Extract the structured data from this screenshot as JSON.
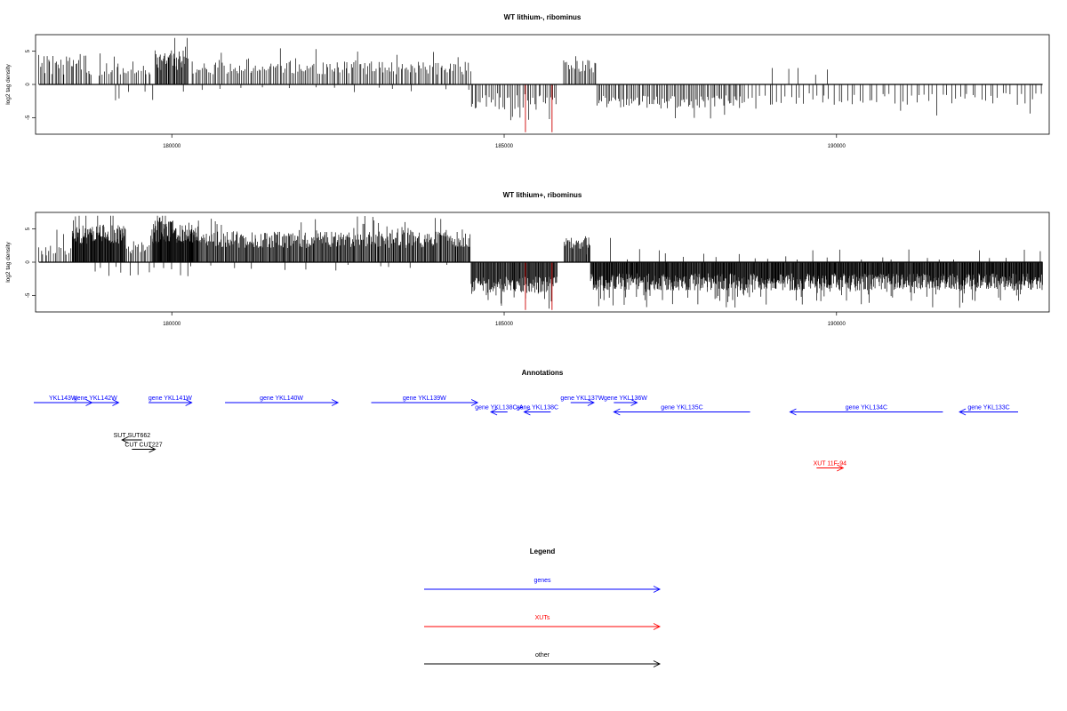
{
  "chart_data": [
    {
      "type": "bar",
      "title": "WT lithium-, ribominus",
      "ylabel": "log2 tag density",
      "xlabel": "",
      "xlim": [
        177950,
        193200
      ],
      "ylim": [
        -7.5,
        7.5
      ],
      "x_ticks": [
        180000,
        185000,
        190000
      ],
      "y_ticks": [
        -5,
        0,
        5
      ],
      "grid": false,
      "colors": {
        "bars": "#000000",
        "highlight": "#cc0000",
        "frame": "#000000"
      },
      "series": [
        {
          "strand": "plus",
          "segments": [
            {
              "from": 178000,
              "to": 178800,
              "step": 24,
              "base": 2.4,
              "amp": 3.0,
              "seed": 1
            },
            {
              "from": 178900,
              "to": 179700,
              "step": 30,
              "base": 2.0,
              "amp": 2.0,
              "seed": 2
            },
            {
              "from": 179750,
              "to": 180250,
              "step": 12,
              "base": 3.2,
              "amp": 3.0,
              "seed": 3
            },
            {
              "from": 180300,
              "to": 184500,
              "step": 26,
              "base": 2.2,
              "amp": 2.0,
              "seed": 4
            },
            {
              "from": 185900,
              "to": 186400,
              "step": 22,
              "base": 2.4,
              "amp": 2.0,
              "seed": 5
            },
            {
              "from": 189000,
              "to": 189900,
              "step": 220,
              "base": 1.6,
              "amp": 1.5,
              "seed": 6
            }
          ]
        },
        {
          "strand": "minus",
          "segments": [
            {
              "from": 179100,
              "to": 179700,
              "step": 150,
              "base": 1.4,
              "amp": 2.0,
              "seed": 11
            },
            {
              "from": 180200,
              "to": 184400,
              "step": 320,
              "base": 0.6,
              "amp": 1.0,
              "seed": 12
            },
            {
              "from": 184500,
              "to": 185800,
              "step": 30,
              "base": 2.2,
              "amp": 2.5,
              "seed": 13
            },
            {
              "from": 186400,
              "to": 188600,
              "step": 24,
              "base": 2.3,
              "amp": 2.0,
              "seed": 14
            },
            {
              "from": 188600,
              "to": 193100,
              "step": 65,
              "base": 1.9,
              "amp": 1.8,
              "seed": 15
            }
          ]
        }
      ],
      "highlights": [
        {
          "x": 185320,
          "y": -7.2
        },
        {
          "x": 185720,
          "y": -7.2
        }
      ]
    },
    {
      "type": "bar",
      "title": "WT lithium+, ribominus",
      "ylabel": "log2 tag density",
      "xlabel": "",
      "xlim": [
        177950,
        193200
      ],
      "ylim": [
        -7.5,
        7.5
      ],
      "x_ticks": [
        180000,
        185000,
        190000
      ],
      "y_ticks": [
        -5,
        0,
        5
      ],
      "grid": false,
      "colors": {
        "bars": "#000000",
        "highlight": "#cc0000",
        "frame": "#000000"
      },
      "series": [
        {
          "strand": "plus",
          "segments": [
            {
              "from": 178000,
              "to": 178500,
              "step": 30,
              "base": 1.6,
              "amp": 2.0,
              "seed": 21
            },
            {
              "from": 178500,
              "to": 179300,
              "step": 8,
              "base": 3.8,
              "amp": 3.0,
              "seed": 22
            },
            {
              "from": 179300,
              "to": 179700,
              "step": 22,
              "base": 2.0,
              "amp": 2.0,
              "seed": 23
            },
            {
              "from": 179700,
              "to": 180400,
              "step": 7,
              "base": 4.0,
              "amp": 3.5,
              "seed": 24
            },
            {
              "from": 180400,
              "to": 184500,
              "step": 12,
              "base": 3.0,
              "amp": 2.5,
              "seed": 25
            },
            {
              "from": 185900,
              "to": 186300,
              "step": 12,
              "base": 2.6,
              "amp": 2.0,
              "seed": 26
            },
            {
              "from": 186300,
              "to": 193100,
              "step": 240,
              "base": 0.8,
              "amp": 1.8,
              "seed": 27
            }
          ]
        },
        {
          "strand": "minus",
          "segments": [
            {
              "from": 178800,
              "to": 180300,
              "step": 120,
              "base": 1.2,
              "amp": 1.5,
              "seed": 31
            },
            {
              "from": 180300,
              "to": 184300,
              "step": 340,
              "base": 0.5,
              "amp": 1.0,
              "seed": 32
            },
            {
              "from": 184500,
              "to": 185800,
              "step": 10,
              "base": 3.0,
              "amp": 2.5,
              "seed": 33
            },
            {
              "from": 186300,
              "to": 193100,
              "step": 8,
              "base": 2.6,
              "amp": 2.6,
              "seed": 34
            }
          ]
        }
      ],
      "highlights": [
        {
          "x": 185320,
          "y": -7.2
        },
        {
          "x": 185720,
          "y": -7.2
        }
      ]
    }
  ],
  "annotations": {
    "title": "Annotations",
    "features": [
      {
        "label": "YKL143W",
        "kind": "gene",
        "strand": "+",
        "start": 177700,
        "end": 178800,
        "row": 0
      },
      {
        "label": "gene YKL142W",
        "kind": "gene",
        "strand": "+",
        "start": 178500,
        "end": 179200,
        "row": 0
      },
      {
        "label": "gene YKL141W",
        "kind": "gene",
        "strand": "+",
        "start": 179650,
        "end": 180300,
        "row": 0
      },
      {
        "label": "gene YKL140W",
        "kind": "gene",
        "strand": "+",
        "start": 180800,
        "end": 182500,
        "row": 0
      },
      {
        "label": "gene YKL139W",
        "kind": "gene",
        "strand": "+",
        "start": 183000,
        "end": 184600,
        "row": 0
      },
      {
        "label": "gene YKL138C-A",
        "kind": "gene",
        "strand": "-",
        "start": 184800,
        "end": 185050,
        "row": 1
      },
      {
        "label": "gene YKL138C",
        "kind": "gene",
        "strand": "-",
        "start": 185300,
        "end": 185700,
        "row": 1
      },
      {
        "label": "gene YKL137W",
        "kind": "gene",
        "strand": "+",
        "start": 186000,
        "end": 186350,
        "row": 0
      },
      {
        "label": "gene YKL136W",
        "kind": "gene",
        "strand": "+",
        "start": 186650,
        "end": 187000,
        "row": 0
      },
      {
        "label": "gene YKL135C",
        "kind": "gene",
        "strand": "-",
        "start": 186650,
        "end": 188700,
        "row": 1
      },
      {
        "label": "gene YKL134C",
        "kind": "gene",
        "strand": "-",
        "start": 189300,
        "end": 191600,
        "row": 1
      },
      {
        "label": "gene YKL133C",
        "kind": "gene",
        "strand": "-",
        "start": 191850,
        "end": 193150,
        "row": 1
      },
      {
        "label": "SUT SUT662",
        "kind": "other",
        "strand": "-",
        "start": 179250,
        "end": 179550,
        "row": 4
      },
      {
        "label": "CUT CUT227",
        "kind": "other",
        "strand": "+",
        "start": 179400,
        "end": 179750,
        "row": 5
      },
      {
        "label": "XUT 11F-94",
        "kind": "xut",
        "strand": "+",
        "start": 189700,
        "end": 190100,
        "row": 7
      }
    ]
  },
  "legend": {
    "title": "Legend",
    "items": [
      {
        "label": "genes",
        "color": "#0000ff"
      },
      {
        "label": "XUTs",
        "color": "#ff0000"
      },
      {
        "label": "other",
        "color": "#000000"
      }
    ]
  }
}
